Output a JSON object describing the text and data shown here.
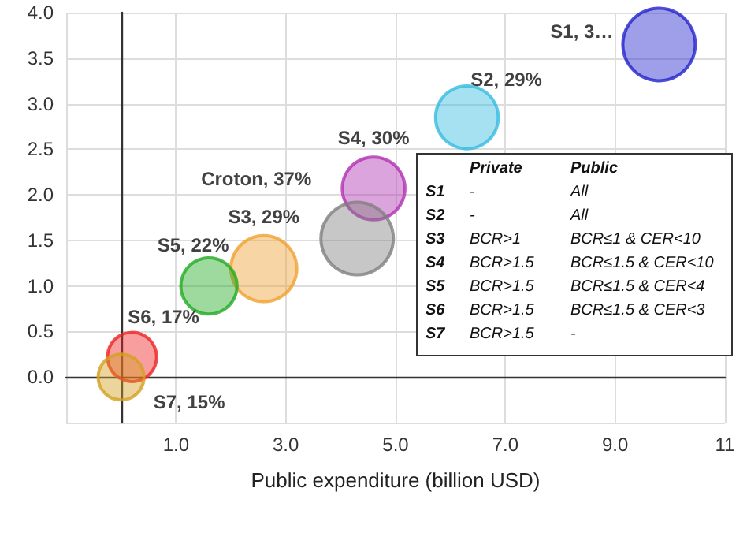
{
  "chart_data": {
    "type": "bubble",
    "xlabel": "Public expenditure (billion USD)",
    "xlim": [
      -1,
      11
    ],
    "xticks": [
      {
        "value": -1,
        "label": null
      },
      {
        "value": 1,
        "label": "1.0"
      },
      {
        "value": 3,
        "label": "3.0"
      },
      {
        "value": 5,
        "label": "5.0"
      },
      {
        "value": 7,
        "label": "7.0"
      },
      {
        "value": 9,
        "label": "9.0"
      },
      {
        "value": 11,
        "label": "11"
      }
    ],
    "ylim": [
      -0.5,
      4
    ],
    "yticks": [
      {
        "value": -0.5,
        "label": null
      },
      {
        "value": 0,
        "label": "0.0"
      },
      {
        "value": 0.5,
        "label": "0.5"
      },
      {
        "value": 1,
        "label": "1.0"
      },
      {
        "value": 1.5,
        "label": "1.5"
      },
      {
        "value": 2,
        "label": "2.0"
      },
      {
        "value": 2.5,
        "label": "2.5"
      },
      {
        "value": 3,
        "label": "3.0"
      },
      {
        "value": 3.5,
        "label": "3.5"
      },
      {
        "value": 4,
        "label": "4.0"
      }
    ],
    "grid": true,
    "legend": false,
    "series": [
      {
        "name": "S1, 3…",
        "color": "#2222cc",
        "x": [
          9.8
        ],
        "values": [
          3.65
        ],
        "sizes": [
          1
        ]
      },
      {
        "name": "S2, 29%",
        "color": "#33bbe0",
        "x": [
          6.3
        ],
        "values": [
          2.85
        ],
        "sizes": [
          0.75
        ]
      },
      {
        "name": "S4, 30%",
        "color": "#b030b0",
        "x": [
          4.6
        ],
        "values": [
          2.07
        ],
        "sizes": [
          0.75
        ]
      },
      {
        "name": "Croton, 37%",
        "color": "#808080",
        "x": [
          4.3
        ],
        "values": [
          1.52
        ],
        "sizes": [
          1
        ]
      },
      {
        "name": "S3, 29%",
        "color": "#f0a030",
        "x": [
          2.6
        ],
        "values": [
          1.19
        ],
        "sizes": [
          0.83
        ]
      },
      {
        "name": "S5, 22%",
        "color": "#22aa22",
        "x": [
          1.6
        ],
        "values": [
          1.0
        ],
        "sizes": [
          0.6
        ]
      },
      {
        "name": "S6, 17%",
        "color": "#ee2222",
        "x": [
          0.2
        ],
        "values": [
          0.22
        ],
        "sizes": [
          0.46
        ]
      },
      {
        "name": "S7, 15%",
        "color": "#d4a020",
        "x": [
          0
        ],
        "values": [
          0
        ],
        "sizes": [
          0.4
        ]
      }
    ],
    "annotations": [
      "Private",
      "Public",
      "S1",
      "-",
      "All",
      "S2",
      "-",
      "All",
      "S3",
      "BCR>1",
      "BCR≤1 & CER<10",
      "S4",
      "BCR>1.5",
      "BCR≤1.5 & CER<10",
      "S5",
      "BCR>1.5",
      "BCR≤1.5 & CER<4",
      "S6",
      "BCR>1.5",
      "BCR≤1.5 & CER<3",
      "S7",
      "BCR>1.5",
      "-"
    ]
  }
}
